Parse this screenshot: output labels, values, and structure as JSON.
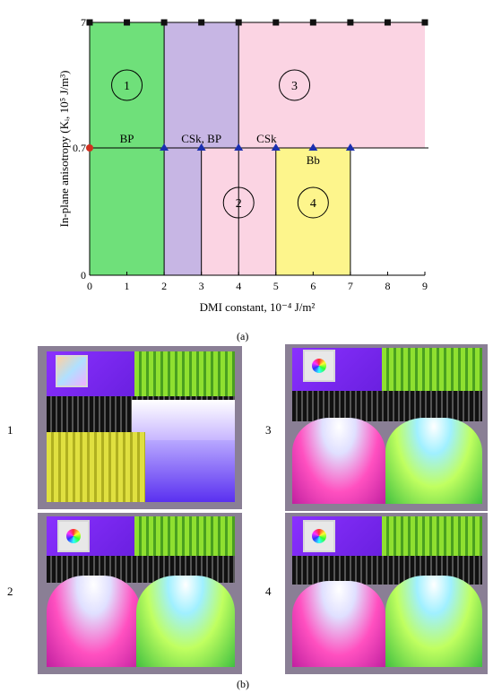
{
  "chart_data": {
    "type": "area",
    "xlabel": "DMI constant, 10⁻⁴ J/m²",
    "ylabel": "In-plane anisotropy (Kᵢ, 10⁵ J/m³)",
    "x_ticks": [
      "0",
      "1",
      "2",
      "3",
      "4",
      "5",
      "6",
      "7",
      "8",
      "9"
    ],
    "y_ticks": [
      {
        "value": 0,
        "label": "0"
      },
      {
        "value": 0.7,
        "label": "0.7"
      },
      {
        "value": 7,
        "label": "7"
      }
    ],
    "xlim": [
      0,
      9
    ],
    "regions": [
      {
        "x": [
          0,
          2
        ],
        "y": [
          0,
          7
        ],
        "color": "#6fe07a"
      },
      {
        "x": [
          2,
          4
        ],
        "y": [
          0.7,
          7
        ],
        "color": "#c7b6e4"
      },
      {
        "x": [
          2,
          3
        ],
        "y": [
          0,
          0.7
        ],
        "color": "#c7b6e4"
      },
      {
        "x": [
          4,
          9
        ],
        "y": [
          0.7,
          7
        ],
        "color": "#fbd4e3"
      },
      {
        "x": [
          3,
          5
        ],
        "y": [
          0,
          0.7
        ],
        "color": "#fbd4e3"
      },
      {
        "x": [
          5,
          7
        ],
        "y": [
          0,
          0.7
        ],
        "color": "#fdf58c"
      }
    ],
    "boundaries_x": [
      2,
      3,
      4,
      5,
      7
    ],
    "square_markers": {
      "y": 7,
      "x": [
        0,
        1,
        2,
        3,
        4,
        5,
        6,
        7,
        8,
        9
      ]
    },
    "triangle_markers": {
      "y": 0.7,
      "x": [
        2,
        3,
        4,
        5,
        6,
        7
      ]
    },
    "circle_markers": [
      {
        "x": 0,
        "y": 0.7,
        "color": "#d03020"
      }
    ],
    "circled_labels": [
      {
        "text": "1",
        "x": 1,
        "y": 3.5
      },
      {
        "text": "3",
        "x": 5.5,
        "y": 3.5
      },
      {
        "text": "2",
        "x": 4,
        "y": 0.35
      },
      {
        "text": "4",
        "x": 6,
        "y": 0.35
      }
    ],
    "annotations": [
      {
        "text": "BP",
        "x": 1,
        "y": 0.7
      },
      {
        "text": "CSk, BP",
        "x": 3,
        "y": 0.7
      },
      {
        "text": "CSk",
        "x": 4.75,
        "y": 0.7
      },
      {
        "text": "Bb",
        "x": 6,
        "y": 0.7
      }
    ]
  },
  "captions": {
    "a": "(a)",
    "b": "(b)"
  },
  "panels": [
    {
      "id": "1",
      "label": "1"
    },
    {
      "id": "2",
      "label": "2"
    },
    {
      "id": "3",
      "label": "3"
    },
    {
      "id": "4",
      "label": "4"
    }
  ]
}
